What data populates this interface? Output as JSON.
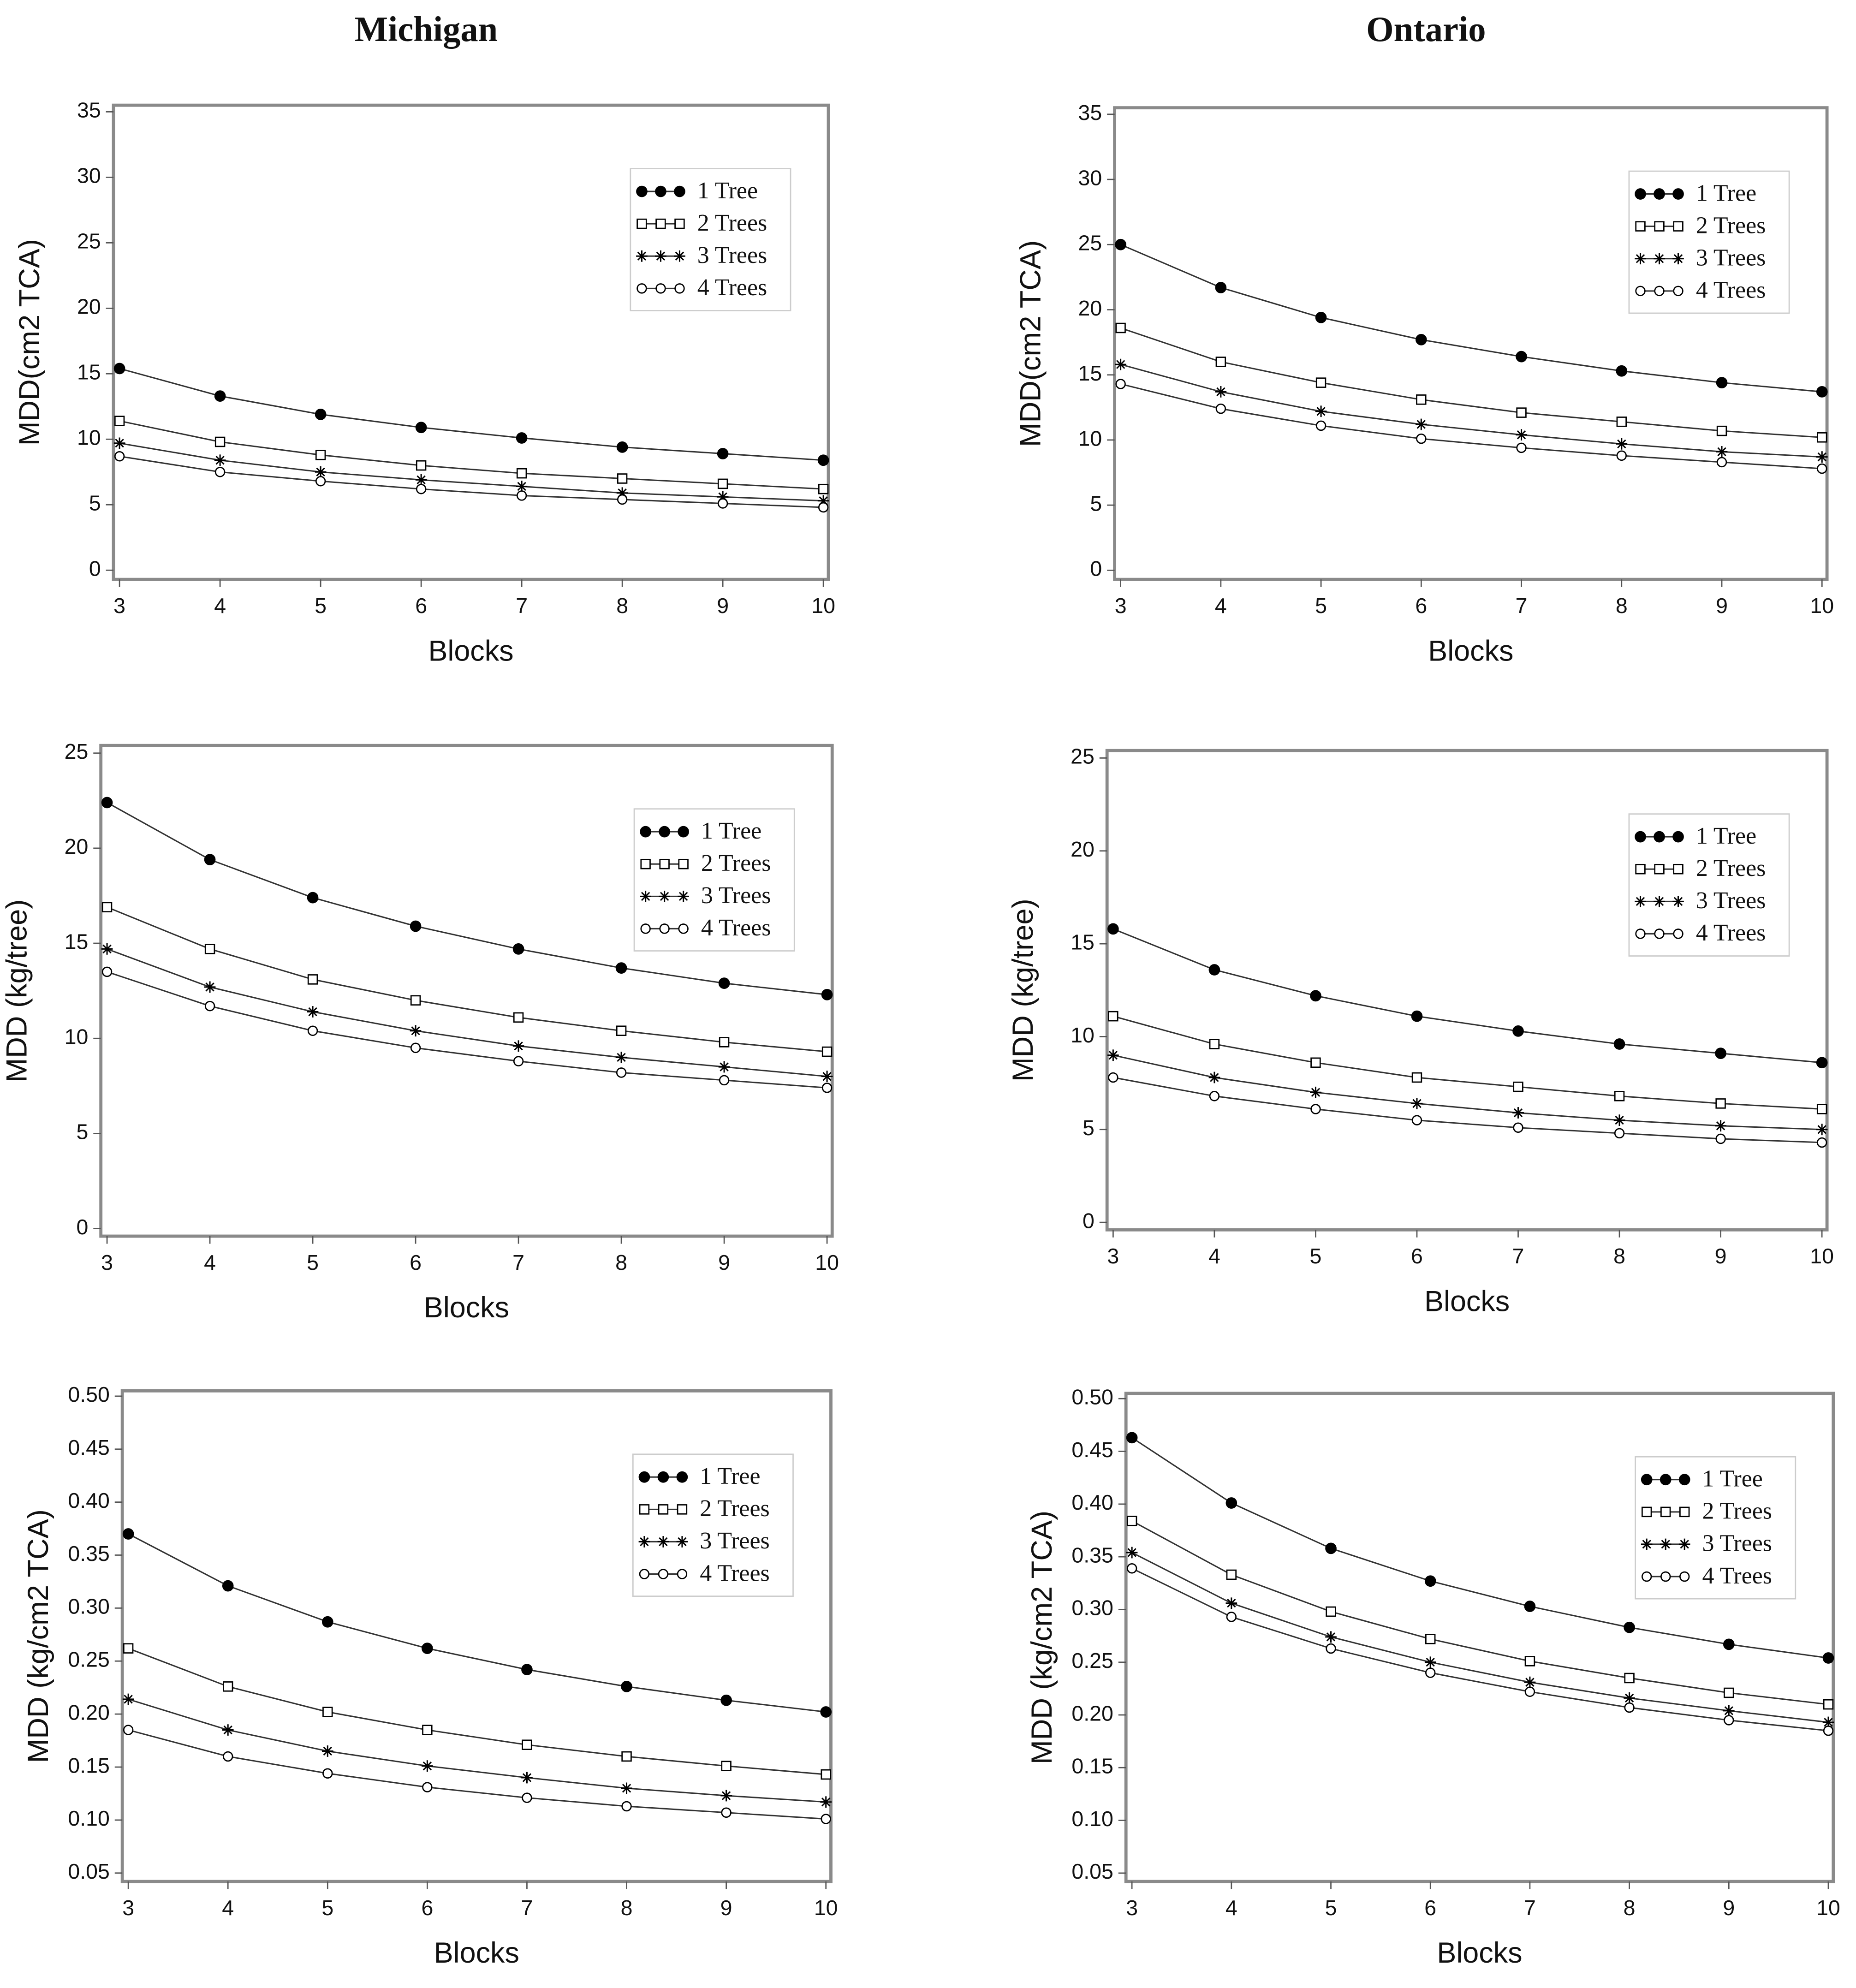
{
  "column_titles": [
    "Michigan",
    "Ontario"
  ],
  "chart_data": [
    {
      "type": "line",
      "ylabel": "MDD(cm2 TCA)",
      "xlabel": "Blocks",
      "legend": "upper right",
      "grid": false,
      "x": [
        3,
        4,
        5,
        6,
        7,
        8,
        9,
        10
      ],
      "xlim": [
        2.94,
        10.05
      ],
      "xticks": [
        3,
        4,
        5,
        6,
        7,
        8,
        9,
        10
      ],
      "ylim": [
        -0.7,
        35.5
      ],
      "yticks": [
        0,
        5,
        10,
        15,
        20,
        25,
        30,
        35
      ],
      "series": [
        {
          "name": "1 Tree",
          "color": "#333333",
          "marker": "circle-filled",
          "values": [
            15.4,
            13.3,
            11.9,
            10.9,
            10.1,
            9.4,
            8.9,
            8.4
          ]
        },
        {
          "name": "2 Trees",
          "color": "#333333",
          "marker": "square",
          "values": [
            11.4,
            9.8,
            8.8,
            8.0,
            7.4,
            7.0,
            6.6,
            6.2
          ]
        },
        {
          "name": "3 Trees",
          "color": "#333333",
          "marker": "star",
          "values": [
            9.7,
            8.4,
            7.5,
            6.9,
            6.4,
            5.9,
            5.6,
            5.3
          ]
        },
        {
          "name": "4 Trees",
          "color": "#333333",
          "marker": "circle",
          "values": [
            8.7,
            7.5,
            6.8,
            6.2,
            5.7,
            5.4,
            5.1,
            4.8
          ]
        }
      ]
    },
    {
      "type": "line",
      "ylabel": "MDD(cm2 TCA)",
      "xlabel": "Blocks",
      "legend": "upper right",
      "grid": false,
      "x": [
        3,
        4,
        5,
        6,
        7,
        8,
        9,
        10
      ],
      "xlim": [
        2.94,
        10.05
      ],
      "xticks": [
        3,
        4,
        5,
        6,
        7,
        8,
        9,
        10
      ],
      "ylim": [
        -0.7,
        35.5
      ],
      "yticks": [
        0,
        5,
        10,
        15,
        20,
        25,
        30,
        35
      ],
      "series": [
        {
          "name": "1 Tree",
          "color": "#333333",
          "marker": "circle-filled",
          "values": [
            25.0,
            21.7,
            19.4,
            17.7,
            16.4,
            15.3,
            14.4,
            13.7
          ]
        },
        {
          "name": "2 Trees",
          "color": "#333333",
          "marker": "square",
          "values": [
            18.6,
            16.0,
            14.4,
            13.1,
            12.1,
            11.4,
            10.7,
            10.2
          ]
        },
        {
          "name": "3 Trees",
          "color": "#333333",
          "marker": "star",
          "values": [
            15.8,
            13.7,
            12.2,
            11.2,
            10.4,
            9.7,
            9.1,
            8.7
          ]
        },
        {
          "name": "4 Trees",
          "color": "#333333",
          "marker": "circle",
          "values": [
            14.3,
            12.4,
            11.1,
            10.1,
            9.4,
            8.8,
            8.3,
            7.8
          ]
        }
      ]
    },
    {
      "type": "line",
      "ylabel": "MDD (kg/tree)",
      "xlabel": "Blocks",
      "legend": "upper right",
      "grid": false,
      "x": [
        3,
        4,
        5,
        6,
        7,
        8,
        9,
        10
      ],
      "xlim": [
        2.94,
        10.05
      ],
      "xticks": [
        3,
        4,
        5,
        6,
        7,
        8,
        9,
        10
      ],
      "ylim": [
        -0.4,
        25.4
      ],
      "yticks": [
        0,
        5,
        10,
        15,
        20,
        25
      ],
      "series": [
        {
          "name": "1 Tree",
          "color": "#333333",
          "marker": "circle-filled",
          "values": [
            22.4,
            19.4,
            17.4,
            15.9,
            14.7,
            13.7,
            12.9,
            12.3
          ]
        },
        {
          "name": "2 Trees",
          "color": "#333333",
          "marker": "square",
          "values": [
            16.9,
            14.7,
            13.1,
            12.0,
            11.1,
            10.4,
            9.8,
            9.3
          ]
        },
        {
          "name": "3 Trees",
          "color": "#333333",
          "marker": "star",
          "values": [
            14.7,
            12.7,
            11.4,
            10.4,
            9.6,
            9.0,
            8.5,
            8.0
          ]
        },
        {
          "name": "4 Trees",
          "color": "#333333",
          "marker": "circle",
          "values": [
            13.5,
            11.7,
            10.4,
            9.5,
            8.8,
            8.2,
            7.8,
            7.4
          ]
        }
      ]
    },
    {
      "type": "line",
      "ylabel": "MDD (kg/tree)",
      "xlabel": "Blocks",
      "legend": "upper right",
      "grid": false,
      "x": [
        3,
        4,
        5,
        6,
        7,
        8,
        9,
        10
      ],
      "xlim": [
        2.94,
        10.05
      ],
      "xticks": [
        3,
        4,
        5,
        6,
        7,
        8,
        9,
        10
      ],
      "ylim": [
        -0.4,
        25.4
      ],
      "yticks": [
        0,
        5,
        10,
        15,
        20,
        25
      ],
      "series": [
        {
          "name": "1 Tree",
          "color": "#333333",
          "marker": "circle-filled",
          "values": [
            15.8,
            13.6,
            12.2,
            11.1,
            10.3,
            9.6,
            9.1,
            8.6
          ]
        },
        {
          "name": "2 Trees",
          "color": "#333333",
          "marker": "square",
          "values": [
            11.1,
            9.6,
            8.6,
            7.8,
            7.3,
            6.8,
            6.4,
            6.1
          ]
        },
        {
          "name": "3 Trees",
          "color": "#333333",
          "marker": "star",
          "values": [
            9.0,
            7.8,
            7.0,
            6.4,
            5.9,
            5.5,
            5.2,
            5.0
          ]
        },
        {
          "name": "4 Trees",
          "color": "#333333",
          "marker": "circle",
          "values": [
            7.8,
            6.8,
            6.1,
            5.5,
            5.1,
            4.8,
            4.5,
            4.3
          ]
        }
      ]
    },
    {
      "type": "line",
      "ylabel": "MDD (kg/cm2 TCA)",
      "xlabel": "Blocks",
      "legend": "upper right",
      "grid": false,
      "x": [
        3,
        4,
        5,
        6,
        7,
        8,
        9,
        10
      ],
      "xlim": [
        2.94,
        10.05
      ],
      "xticks": [
        3,
        4,
        5,
        6,
        7,
        8,
        9,
        10
      ],
      "ylim": [
        0.042,
        0.505
      ],
      "yticks": [
        {
          "value": 0.05,
          "label": "0.05"
        },
        {
          "value": 0.1,
          "label": "0.10"
        },
        {
          "value": 0.15,
          "label": "0.15"
        },
        {
          "value": 0.2,
          "label": "0.20"
        },
        {
          "value": 0.25,
          "label": "0.25"
        },
        {
          "value": 0.3,
          "label": "0.30"
        },
        {
          "value": 0.35,
          "label": "0.35"
        },
        {
          "value": 0.4,
          "label": "0.40"
        },
        {
          "value": 0.45,
          "label": "0.45"
        },
        {
          "value": 0.5,
          "label": "0.50"
        }
      ],
      "series": [
        {
          "name": "1 Tree",
          "color": "#333333",
          "marker": "circle-filled",
          "values": [
            0.37,
            0.321,
            0.287,
            0.262,
            0.242,
            0.226,
            0.213,
            0.202
          ]
        },
        {
          "name": "2 Trees",
          "color": "#333333",
          "marker": "square",
          "values": [
            0.262,
            0.226,
            0.202,
            0.185,
            0.171,
            0.16,
            0.151,
            0.143
          ]
        },
        {
          "name": "3 Trees",
          "color": "#333333",
          "marker": "star",
          "values": [
            0.214,
            0.185,
            0.165,
            0.151,
            0.14,
            0.13,
            0.123,
            0.117
          ]
        },
        {
          "name": "4 Trees",
          "color": "#333333",
          "marker": "circle",
          "values": [
            0.185,
            0.16,
            0.144,
            0.131,
            0.121,
            0.113,
            0.107,
            0.101
          ]
        }
      ]
    },
    {
      "type": "line",
      "ylabel": "MDD (kg/cm2 TCA)",
      "xlabel": "Blocks",
      "legend": "upper right",
      "grid": false,
      "x": [
        3,
        4,
        5,
        6,
        7,
        8,
        9,
        10
      ],
      "xlim": [
        2.94,
        10.05
      ],
      "xticks": [
        3,
        4,
        5,
        6,
        7,
        8,
        9,
        10
      ],
      "ylim": [
        0.042,
        0.505
      ],
      "yticks": [
        {
          "value": 0.05,
          "label": "0.05"
        },
        {
          "value": 0.1,
          "label": "0.10"
        },
        {
          "value": 0.15,
          "label": "0.15"
        },
        {
          "value": 0.2,
          "label": "0.20"
        },
        {
          "value": 0.25,
          "label": "0.25"
        },
        {
          "value": 0.3,
          "label": "0.30"
        },
        {
          "value": 0.35,
          "label": "0.35"
        },
        {
          "value": 0.4,
          "label": "0.40"
        },
        {
          "value": 0.45,
          "label": "0.45"
        },
        {
          "value": 0.5,
          "label": "0.50"
        }
      ],
      "series": [
        {
          "name": "1 Tree",
          "color": "#333333",
          "marker": "circle-filled",
          "values": [
            0.463,
            0.401,
            0.358,
            0.327,
            0.303,
            0.283,
            0.267,
            0.254
          ]
        },
        {
          "name": "2 Trees",
          "color": "#333333",
          "marker": "square",
          "values": [
            0.384,
            0.333,
            0.298,
            0.272,
            0.251,
            0.235,
            0.221,
            0.21
          ]
        },
        {
          "name": "3 Trees",
          "color": "#333333",
          "marker": "star",
          "values": [
            0.354,
            0.306,
            0.274,
            0.25,
            0.231,
            0.216,
            0.204,
            0.193
          ]
        },
        {
          "name": "4 Trees",
          "color": "#333333",
          "marker": "circle",
          "values": [
            0.339,
            0.293,
            0.263,
            0.24,
            0.222,
            0.207,
            0.195,
            0.185
          ]
        }
      ]
    }
  ]
}
